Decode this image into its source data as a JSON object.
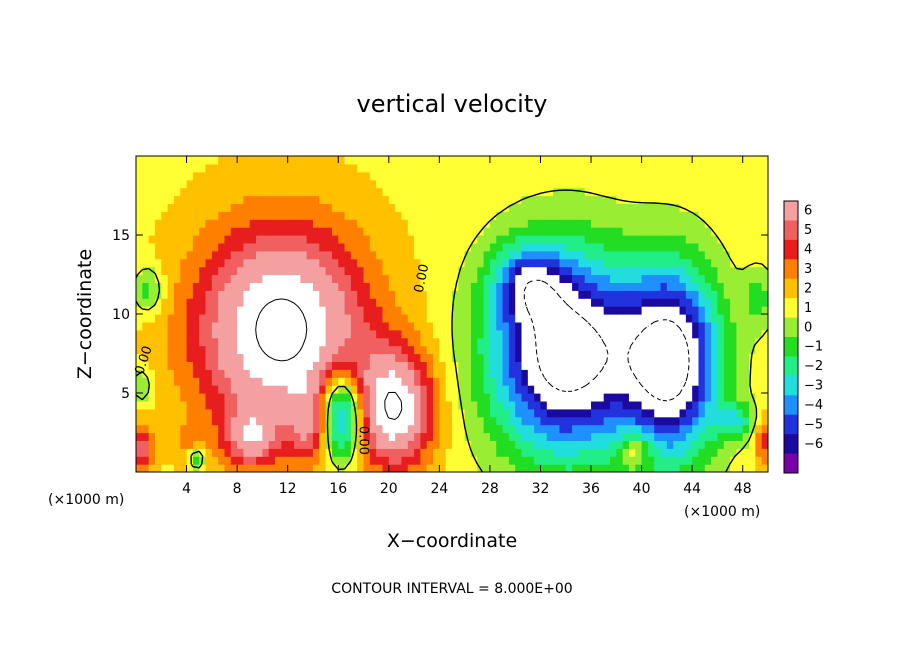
{
  "chart_data": {
    "type": "heatmap",
    "title": "vertical velocity",
    "xlabel": "X−coordinate",
    "ylabel": "Z−coordinate",
    "x_unit_left": "(×1000 m)",
    "x_unit_right": "(×1000 m)",
    "footer": "CONTOUR INTERVAL = 8.000E+00",
    "xlim": [
      0,
      50
    ],
    "ylim": [
      0,
      20
    ],
    "x_ticks": [
      4,
      8,
      12,
      16,
      20,
      24,
      28,
      32,
      36,
      40,
      44,
      48
    ],
    "x_tick_labels": [
      "4",
      "8",
      "12",
      "16",
      "20",
      "24",
      "28",
      "32",
      "36",
      "40",
      "44",
      "48"
    ],
    "y_ticks": [
      5,
      10,
      15
    ],
    "y_tick_labels": [
      "5",
      "10",
      "15"
    ],
    "colorbar": {
      "levels": [
        6,
        5,
        4,
        3,
        2,
        1,
        0,
        -1,
        -2,
        -3,
        -4,
        -5,
        -6
      ],
      "labels": [
        "6",
        "5",
        "4",
        "3",
        "2",
        "1",
        "0",
        "−1",
        "−2",
        "−3",
        "−4",
        "−5",
        "−6"
      ],
      "colors": [
        "#f4a0a0",
        "#f06060",
        "#e81e1e",
        "#ff7f00",
        "#ffc000",
        "#ffff33",
        "#99ee33",
        "#22dd22",
        "#22ee88",
        "#22dddd",
        "#1e90ff",
        "#2233dd",
        "#1a0aa0",
        "#7a00aa"
      ]
    },
    "contour_labels": [
      {
        "text": "0.00",
        "x": 0.9,
        "y": 7.0,
        "angle": -72
      },
      {
        "text": "0.00",
        "x": 17.7,
        "y": 2.0,
        "angle": 90
      },
      {
        "text": "0.00",
        "x": 22.9,
        "y": 12.2,
        "angle": -78
      }
    ],
    "features": [
      {
        "kind": "updraft",
        "cx": 11.5,
        "cz": 9.0,
        "rx": 8.5,
        "rz": 8.2,
        "peak": 8
      },
      {
        "kind": "updraft",
        "cx": 20.5,
        "cz": 4.0,
        "rx": 3.8,
        "rz": 4.6,
        "peak": 7
      },
      {
        "kind": "updraft",
        "cx": 9.0,
        "cz": 2.2,
        "rx": 2.5,
        "rz": 2.2,
        "peak": 4
      },
      {
        "kind": "updraft",
        "cx": 14.0,
        "cz": 3.0,
        "rx": 2.0,
        "rz": 2.8,
        "peak": 3
      },
      {
        "kind": "updraft",
        "cx": 0.4,
        "cz": 1.5,
        "rx": 1.2,
        "rz": 1.8,
        "peak": 4
      },
      {
        "kind": "updraft",
        "cx": 49.7,
        "cz": 2.0,
        "rx": 1.0,
        "rz": 2.0,
        "peak": 3
      },
      {
        "kind": "updraft",
        "cx": 39.5,
        "cz": 1.5,
        "rx": 1.5,
        "rz": 1.4,
        "peak": 3
      },
      {
        "kind": "updraft",
        "cx": 4.0,
        "cz": 1.8,
        "rx": 1.3,
        "rz": 1.5,
        "peak": 1
      },
      {
        "kind": "downdraft",
        "cx": 16.2,
        "cz": 3.6,
        "rx": 2.2,
        "rz": 3.6,
        "peak": -8
      },
      {
        "kind": "downdraft",
        "cx": 34.0,
        "cz": 7.5,
        "rx": 7.5,
        "rz": 8.0,
        "peak": -10
      },
      {
        "kind": "downdraft",
        "cx": 42.5,
        "cz": 7.0,
        "rx": 4.8,
        "rz": 7.5,
        "peak": -9
      },
      {
        "kind": "downdraft",
        "cx": 31.0,
        "cz": 12.0,
        "rx": 3.5,
        "rz": 3.0,
        "peak": -4
      },
      {
        "kind": "downdraft",
        "cx": 1.0,
        "cz": 11.5,
        "rx": 1.6,
        "rz": 2.0,
        "peak": -2.5
      },
      {
        "kind": "downdraft",
        "cx": 49.3,
        "cz": 11.0,
        "rx": 1.5,
        "rz": 2.5,
        "peak": -2
      },
      {
        "kind": "downdraft",
        "cx": 47.5,
        "cz": 3.2,
        "rx": 2.0,
        "rz": 1.4,
        "peak": -3
      },
      {
        "kind": "downdraft",
        "cx": 4.8,
        "cz": 0.9,
        "rx": 0.8,
        "rz": 0.9,
        "peak": -3
      },
      {
        "kind": "downdraft",
        "cx": 0.5,
        "cz": 5.5,
        "rx": 1.0,
        "rz": 1.5,
        "peak": -2
      }
    ]
  }
}
